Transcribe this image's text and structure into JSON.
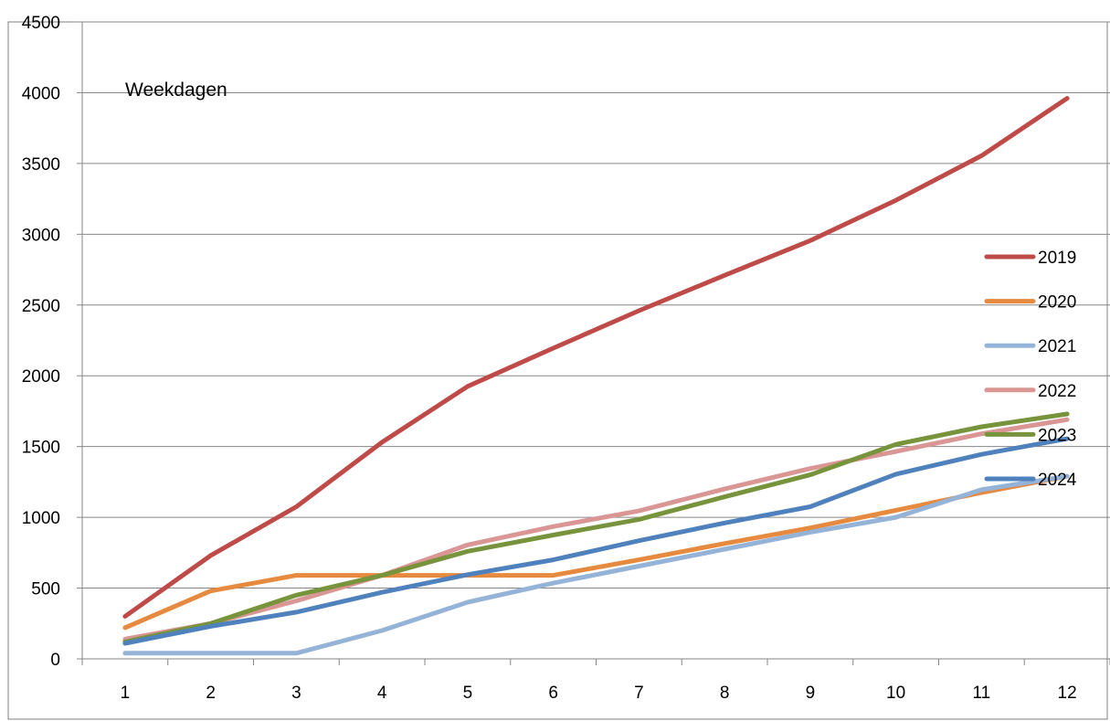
{
  "chart_data": {
    "type": "line",
    "title": "Weekdagen",
    "xlabel": "",
    "ylabel": "",
    "categories": [
      "1",
      "2",
      "3",
      "4",
      "5",
      "6",
      "7",
      "8",
      "9",
      "10",
      "11",
      "12"
    ],
    "ylim": [
      0,
      4500
    ],
    "yticks": [
      "0",
      "500",
      "1000",
      "1500",
      "2000",
      "2500",
      "3000",
      "3500",
      "4000",
      "4500"
    ],
    "grid": "horizontal",
    "legend_position": "right",
    "series": [
      {
        "name": "2019",
        "color": "#BE4B48",
        "values": [
          300,
          730,
          1075,
          1530,
          1925,
          2195,
          2460,
          2710,
          2955,
          3240,
          3555,
          3960
        ]
      },
      {
        "name": "2020",
        "color": "#E68A3F",
        "values": [
          220,
          480,
          590,
          590,
          590,
          590,
          700,
          815,
          925,
          1050,
          1175,
          1290
        ]
      },
      {
        "name": "2021",
        "color": "#95B3D7",
        "values": [
          40,
          40,
          40,
          200,
          400,
          535,
          655,
          775,
          895,
          1000,
          1195,
          1290
        ]
      },
      {
        "name": "2022",
        "color": "#D99694",
        "values": [
          140,
          250,
          410,
          590,
          805,
          935,
          1045,
          1200,
          1345,
          1465,
          1590,
          1690
        ]
      },
      {
        "name": "2023",
        "color": "#77933C",
        "values": [
          120,
          250,
          450,
          590,
          760,
          875,
          985,
          1145,
          1300,
          1515,
          1640,
          1730
        ]
      },
      {
        "name": "2024",
        "color": "#4F81BD",
        "values": [
          110,
          230,
          330,
          470,
          595,
          700,
          835,
          960,
          1075,
          1305,
          1445,
          1555
        ]
      }
    ]
  }
}
